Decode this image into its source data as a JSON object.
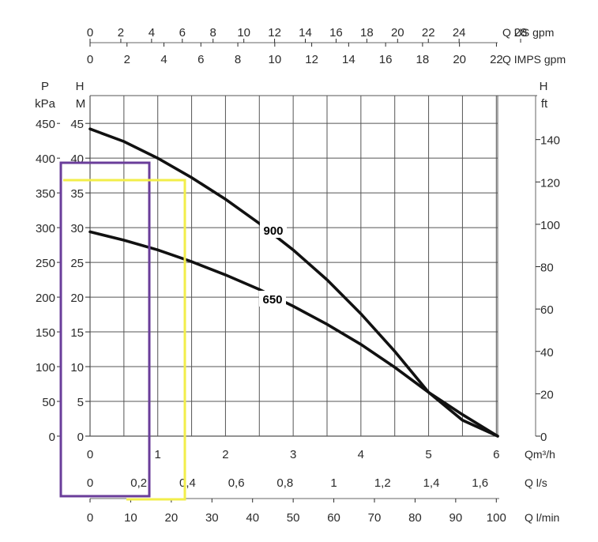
{
  "chart_data": {
    "type": "line",
    "title": "",
    "grid": true,
    "axes": {
      "us_gpm": {
        "label": "Q US gpm",
        "ticks": [
          "0",
          "2",
          "4",
          "6",
          "8",
          "10",
          "12",
          "14",
          "16",
          "18",
          "20",
          "22",
          "24",
          "28"
        ]
      },
      "imps_gpm": {
        "label": "Q IMPS gpm",
        "ticks": [
          "0",
          "2",
          "4",
          "6",
          "8",
          "10",
          "12",
          "14",
          "16",
          "18",
          "20",
          "22"
        ]
      },
      "m3h": {
        "label": "Qm³/h",
        "range": [
          0,
          6
        ],
        "ticks": [
          "0",
          "1",
          "2",
          "3",
          "4",
          "5",
          "6"
        ]
      },
      "ls": {
        "label": "Q l/s",
        "ticks": [
          "0",
          "0,2",
          "0,4",
          "0,6",
          "0,8",
          "1",
          "1,2",
          "1,4",
          "1,6"
        ]
      },
      "lmin": {
        "label": "Q l/min",
        "ticks": [
          "0",
          "10",
          "20",
          "30",
          "40",
          "50",
          "60",
          "70",
          "80",
          "90",
          "100"
        ]
      },
      "pressure": {
        "label_top": "P",
        "label_unit": "kPa",
        "ticks": [
          "0",
          "50",
          "100",
          "150",
          "200",
          "250",
          "300",
          "350",
          "400",
          "450"
        ]
      },
      "head_m": {
        "label_top": "H",
        "label_unit": "M",
        "range": [
          0,
          45
        ],
        "ticks": [
          "0",
          "5",
          "10",
          "15",
          "20",
          "25",
          "30",
          "35",
          "40",
          "45"
        ]
      },
      "head_ft": {
        "label_top": "H",
        "label_unit": "ft",
        "ticks": [
          "0",
          "20",
          "40",
          "60",
          "80",
          "100",
          "120",
          "140"
        ]
      }
    },
    "x_unit": "m3/h",
    "y_unit": "m",
    "series": [
      {
        "name": "900",
        "points": [
          [
            0,
            44.2
          ],
          [
            0.5,
            42.4
          ],
          [
            1,
            40
          ],
          [
            1.5,
            37.2
          ],
          [
            2,
            34.1
          ],
          [
            2.5,
            30.6
          ],
          [
            3,
            26.8
          ],
          [
            3.5,
            22.5
          ],
          [
            4,
            17.6
          ],
          [
            4.5,
            12.2
          ],
          [
            5,
            6.3
          ],
          [
            5.5,
            2.3
          ],
          [
            6.02,
            0
          ]
        ]
      },
      {
        "name": "650",
        "points": [
          [
            0,
            29.4
          ],
          [
            0.5,
            28.2
          ],
          [
            1,
            26.8
          ],
          [
            1.5,
            25.1
          ],
          [
            2,
            23.2
          ],
          [
            2.5,
            21.1
          ],
          [
            3,
            18.7
          ],
          [
            3.5,
            16.1
          ],
          [
            4,
            13.2
          ],
          [
            4.5,
            9.9
          ],
          [
            5,
            6.3
          ],
          [
            5.5,
            3.1
          ],
          [
            6.02,
            0
          ]
        ]
      }
    ],
    "highlights": [
      {
        "color": "#6a3d9a",
        "label": ""
      },
      {
        "color": "#f2ee4a",
        "label": ""
      }
    ],
    "colors": {
      "grid": "#555555",
      "curve": "#111111",
      "text": "#2a2a2a"
    }
  }
}
